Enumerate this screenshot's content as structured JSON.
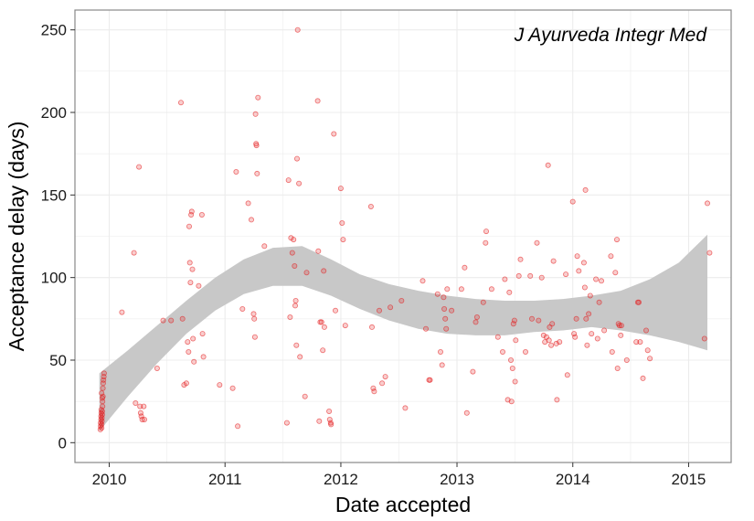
{
  "chart_data": {
    "type": "scatter",
    "annotation": "J Ayurveda Integr Med",
    "xlabel": "Date accepted",
    "ylabel": "Acceptance delay (days)",
    "xlim": [
      "2009-09-15",
      "2015-05-15"
    ],
    "ylim": [
      -12,
      262
    ],
    "x_ticks": [
      "2010-01-01",
      "2011-01-01",
      "2012-01-01",
      "2013-01-01",
      "2014-01-01",
      "2015-01-01"
    ],
    "x_tick_labels": [
      "2010",
      "2011",
      "2012",
      "2013",
      "2014",
      "2015"
    ],
    "y_ticks": [
      0,
      50,
      100,
      150,
      200,
      250
    ],
    "y_tick_labels": [
      "0",
      "50",
      "100",
      "150",
      "200",
      "250"
    ],
    "grid": true,
    "colors": {
      "points": "#e41a1c",
      "band": "#c8c8c8",
      "panel_border": "#888888",
      "grid": "#ececec"
    },
    "points": [
      [
        "2009-12-04",
        8
      ],
      [
        "2009-12-05",
        10
      ],
      [
        "2009-12-05",
        12
      ],
      [
        "2009-12-06",
        14
      ],
      [
        "2009-12-06",
        16
      ],
      [
        "2009-12-07",
        18
      ],
      [
        "2009-12-07",
        20
      ],
      [
        "2009-12-08",
        9
      ],
      [
        "2009-12-08",
        11
      ],
      [
        "2009-12-09",
        13
      ],
      [
        "2009-12-09",
        15
      ],
      [
        "2009-12-10",
        17
      ],
      [
        "2009-12-10",
        19
      ],
      [
        "2009-12-11",
        22
      ],
      [
        "2009-12-11",
        25
      ],
      [
        "2009-12-12",
        28
      ],
      [
        "2009-12-12",
        33
      ],
      [
        "2009-12-13",
        36
      ],
      [
        "2009-12-14",
        38
      ],
      [
        "2009-12-15",
        40
      ],
      [
        "2009-12-16",
        42
      ],
      [
        "2009-12-08",
        30
      ],
      [
        "2009-12-10",
        27
      ],
      [
        "2010-02-10",
        79
      ],
      [
        "2010-03-20",
        115
      ],
      [
        "2010-03-25",
        24
      ],
      [
        "2010-04-05",
        167
      ],
      [
        "2010-04-08",
        22
      ],
      [
        "2010-04-10",
        18
      ],
      [
        "2010-04-12",
        16
      ],
      [
        "2010-04-15",
        14
      ],
      [
        "2010-04-20",
        22
      ],
      [
        "2010-04-22",
        14
      ],
      [
        "2010-06-01",
        45
      ],
      [
        "2010-06-20",
        74
      ],
      [
        "2010-07-15",
        74
      ],
      [
        "2010-08-15",
        206
      ],
      [
        "2010-08-20",
        75
      ],
      [
        "2010-08-25",
        35
      ],
      [
        "2010-09-01",
        36
      ],
      [
        "2010-09-05",
        61
      ],
      [
        "2010-09-08",
        55
      ],
      [
        "2010-09-10",
        131
      ],
      [
        "2010-09-12",
        109
      ],
      [
        "2010-09-14",
        97
      ],
      [
        "2010-09-16",
        138
      ],
      [
        "2010-09-18",
        140
      ],
      [
        "2010-09-20",
        105
      ],
      [
        "2010-09-22",
        63
      ],
      [
        "2010-09-25",
        49
      ],
      [
        "2010-10-10",
        95
      ],
      [
        "2010-10-20",
        138
      ],
      [
        "2010-10-22",
        66
      ],
      [
        "2010-10-25",
        52
      ],
      [
        "2010-12-15",
        35
      ],
      [
        "2011-01-25",
        33
      ],
      [
        "2011-02-05",
        164
      ],
      [
        "2011-02-10",
        10
      ],
      [
        "2011-02-25",
        81
      ],
      [
        "2011-03-15",
        145
      ],
      [
        "2011-03-25",
        135
      ],
      [
        "2011-04-01",
        78
      ],
      [
        "2011-04-03",
        75
      ],
      [
        "2011-04-05",
        64
      ],
      [
        "2011-04-07",
        199
      ],
      [
        "2011-04-09",
        181
      ],
      [
        "2011-04-10",
        180
      ],
      [
        "2011-04-12",
        163
      ],
      [
        "2011-04-15",
        209
      ],
      [
        "2011-05-05",
        119
      ],
      [
        "2011-07-15",
        12
      ],
      [
        "2011-07-20",
        159
      ],
      [
        "2011-07-25",
        76
      ],
      [
        "2011-07-28",
        124
      ],
      [
        "2011-08-01",
        115
      ],
      [
        "2011-08-05",
        123
      ],
      [
        "2011-08-08",
        107
      ],
      [
        "2011-08-10",
        83
      ],
      [
        "2011-08-12",
        86
      ],
      [
        "2011-08-14",
        59
      ],
      [
        "2011-08-16",
        172
      ],
      [
        "2011-08-18",
        250
      ],
      [
        "2011-08-22",
        157
      ],
      [
        "2011-08-25",
        52
      ],
      [
        "2011-09-10",
        28
      ],
      [
        "2011-09-15",
        103
      ],
      [
        "2011-10-20",
        207
      ],
      [
        "2011-10-22",
        116
      ],
      [
        "2011-10-25",
        13
      ],
      [
        "2011-10-28",
        73
      ],
      [
        "2011-11-01",
        73
      ],
      [
        "2011-11-05",
        56
      ],
      [
        "2011-11-08",
        104
      ],
      [
        "2011-11-10",
        70
      ],
      [
        "2011-11-25",
        19
      ],
      [
        "2011-11-27",
        14
      ],
      [
        "2011-11-30",
        12
      ],
      [
        "2011-12-01",
        11
      ],
      [
        "2011-12-10",
        187
      ],
      [
        "2011-12-15",
        80
      ],
      [
        "2012-01-01",
        154
      ],
      [
        "2012-01-05",
        133
      ],
      [
        "2012-01-08",
        123
      ],
      [
        "2012-01-15",
        71
      ],
      [
        "2012-04-05",
        143
      ],
      [
        "2012-04-08",
        70
      ],
      [
        "2012-04-12",
        33
      ],
      [
        "2012-04-15",
        31
      ],
      [
        "2012-05-01",
        80
      ],
      [
        "2012-05-10",
        36
      ],
      [
        "2012-05-20",
        40
      ],
      [
        "2012-06-05",
        82
      ],
      [
        "2012-07-10",
        86
      ],
      [
        "2012-07-22",
        21
      ],
      [
        "2012-09-15",
        98
      ],
      [
        "2012-09-25",
        69
      ],
      [
        "2012-10-05",
        38
      ],
      [
        "2012-10-08",
        38
      ],
      [
        "2012-11-01",
        90
      ],
      [
        "2012-11-10",
        55
      ],
      [
        "2012-11-15",
        47
      ],
      [
        "2012-11-20",
        88
      ],
      [
        "2012-11-22",
        81
      ],
      [
        "2012-11-25",
        75
      ],
      [
        "2012-11-28",
        69
      ],
      [
        "2012-12-01",
        93
      ],
      [
        "2012-12-15",
        80
      ],
      [
        "2013-01-15",
        93
      ],
      [
        "2013-01-25",
        106
      ],
      [
        "2013-02-01",
        18
      ],
      [
        "2013-02-20",
        43
      ],
      [
        "2013-03-01",
        73
      ],
      [
        "2013-03-05",
        76
      ],
      [
        "2013-03-25",
        85
      ],
      [
        "2013-04-01",
        121
      ],
      [
        "2013-04-03",
        128
      ],
      [
        "2013-04-20",
        93
      ],
      [
        "2013-05-10",
        64
      ],
      [
        "2013-05-25",
        55
      ],
      [
        "2013-06-01",
        99
      ],
      [
        "2013-06-10",
        26
      ],
      [
        "2013-06-15",
        91
      ],
      [
        "2013-06-20",
        50
      ],
      [
        "2013-06-22",
        25
      ],
      [
        "2013-06-25",
        45
      ],
      [
        "2013-06-28",
        72
      ],
      [
        "2013-07-01",
        74
      ],
      [
        "2013-07-03",
        37
      ],
      [
        "2013-07-05",
        62
      ],
      [
        "2013-07-15",
        101
      ],
      [
        "2013-07-20",
        111
      ],
      [
        "2013-08-05",
        55
      ],
      [
        "2013-08-20",
        101
      ],
      [
        "2013-08-25",
        75
      ],
      [
        "2013-09-10",
        121
      ],
      [
        "2013-09-15",
        74
      ],
      [
        "2013-09-25",
        100
      ],
      [
        "2013-10-01",
        65
      ],
      [
        "2013-10-05",
        61
      ],
      [
        "2013-10-10",
        64
      ],
      [
        "2013-10-15",
        168
      ],
      [
        "2013-10-18",
        62
      ],
      [
        "2013-10-20",
        70
      ],
      [
        "2013-10-25",
        59
      ],
      [
        "2013-10-28",
        72
      ],
      [
        "2013-11-01",
        110
      ],
      [
        "2013-11-10",
        60
      ],
      [
        "2013-11-12",
        26
      ],
      [
        "2013-11-20",
        61
      ],
      [
        "2013-12-10",
        102
      ],
      [
        "2013-12-15",
        41
      ],
      [
        "2014-01-01",
        146
      ],
      [
        "2014-01-05",
        66
      ],
      [
        "2014-01-08",
        64
      ],
      [
        "2014-01-12",
        75
      ],
      [
        "2014-01-15",
        113
      ],
      [
        "2014-01-20",
        104
      ],
      [
        "2014-02-05",
        109
      ],
      [
        "2014-02-08",
        94
      ],
      [
        "2014-02-10",
        153
      ],
      [
        "2014-02-12",
        75
      ],
      [
        "2014-02-15",
        59
      ],
      [
        "2014-02-20",
        78
      ],
      [
        "2014-02-25",
        89
      ],
      [
        "2014-03-01",
        66
      ],
      [
        "2014-03-15",
        99
      ],
      [
        "2014-03-20",
        63
      ],
      [
        "2014-03-25",
        85
      ],
      [
        "2014-04-01",
        98
      ],
      [
        "2014-04-10",
        68
      ],
      [
        "2014-05-01",
        113
      ],
      [
        "2014-05-05",
        55
      ],
      [
        "2014-05-15",
        103
      ],
      [
        "2014-05-20",
        123
      ],
      [
        "2014-05-22",
        45
      ],
      [
        "2014-05-25",
        72
      ],
      [
        "2014-05-28",
        71
      ],
      [
        "2014-06-01",
        65
      ],
      [
        "2014-06-03",
        71
      ],
      [
        "2014-06-20",
        50
      ],
      [
        "2014-07-20",
        61
      ],
      [
        "2014-07-25",
        85
      ],
      [
        "2014-07-28",
        85
      ],
      [
        "2014-08-01",
        61
      ],
      [
        "2014-08-10",
        39
      ],
      [
        "2014-08-20",
        68
      ],
      [
        "2014-08-25",
        56
      ],
      [
        "2014-09-01",
        51
      ],
      [
        "2015-02-20",
        63
      ],
      [
        "2015-03-01",
        145
      ],
      [
        "2015-03-08",
        115
      ]
    ],
    "smooth_band": {
      "x": [
        "2009-12-01",
        "2010-03-01",
        "2010-06-01",
        "2010-09-01",
        "2010-12-01",
        "2011-03-01",
        "2011-06-01",
        "2011-09-01",
        "2011-12-01",
        "2012-03-01",
        "2012-06-01",
        "2012-09-01",
        "2012-12-01",
        "2013-03-01",
        "2013-06-01",
        "2013-09-01",
        "2013-12-01",
        "2014-03-01",
        "2014-06-01",
        "2014-09-01",
        "2014-12-01",
        "2015-03-01"
      ],
      "upper": [
        42,
        56,
        71,
        86,
        100,
        111,
        118,
        119,
        111,
        102,
        96,
        92,
        89,
        87,
        86,
        86,
        87,
        89,
        92,
        99,
        109,
        126
      ],
      "lower": [
        7,
        28,
        48,
        66,
        80,
        90,
        95,
        95,
        89,
        81,
        74,
        69,
        66,
        65,
        65,
        67,
        68,
        70,
        68,
        65,
        61,
        56
      ]
    }
  }
}
